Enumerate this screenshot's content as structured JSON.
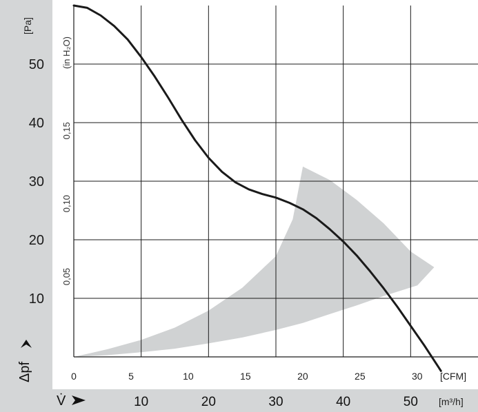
{
  "chart_data": {
    "type": "line",
    "title": "",
    "colors": {
      "curve": "#1a1a1a",
      "operating_range": "#d0d2d3",
      "left_band": "#d4d6d7",
      "bottom_band": "#d4d6d7",
      "grid": "#1a1a1a"
    },
    "axes": {
      "y_left": {
        "label": "[Pa]",
        "ticks": [
          "10",
          "20",
          "30",
          "40",
          "50"
        ],
        "range": [
          0,
          60
        ]
      },
      "y_inner": {
        "label": "(in H₂O)",
        "ticks": [
          "0,05",
          "0,10",
          "0,15"
        ]
      },
      "x_cfm": {
        "label": "[CFM]",
        "ticks": [
          "0",
          "5",
          "10",
          "15",
          "20",
          "25",
          "30"
        ],
        "range": [
          0,
          35.3
        ]
      },
      "x_m3h": {
        "label": "[m³/h]",
        "ticks": [
          "10",
          "20",
          "30",
          "40",
          "50"
        ],
        "range": [
          0,
          60
        ]
      },
      "pressure_symbol": "Δpf",
      "flow_symbol": "V̇"
    },
    "grid": true,
    "series": [
      {
        "x_m3h": [
          0,
          2,
          4,
          6,
          8,
          10,
          12,
          14,
          16,
          18,
          20,
          22,
          24,
          26,
          28,
          30,
          32,
          34,
          36,
          38,
          40,
          42,
          44,
          46,
          48,
          50,
          52,
          54,
          54.5
        ],
        "y_pa": [
          60,
          59.6,
          58.3,
          56.5,
          54.2,
          51.2,
          47.9,
          44.3,
          40.5,
          37.0,
          34.0,
          31.6,
          29.8,
          28.6,
          27.8,
          27.2,
          26.3,
          25.2,
          23.7,
          21.8,
          19.7,
          17.3,
          14.6,
          11.7,
          8.6,
          5.3,
          2.0,
          -1.5,
          -2.4
        ]
      }
    ],
    "operating_region": {
      "x_m3h": [
        0,
        5,
        10,
        15,
        20,
        25,
        30,
        32.5,
        34,
        38,
        42,
        46,
        50,
        53.5,
        51,
        46,
        42,
        38,
        34,
        30,
        25,
        20,
        15,
        10,
        5,
        0
      ],
      "y_pa": [
        0,
        1.3,
        2.9,
        5.0,
        7.9,
        11.8,
        17.2,
        23.5,
        32.5,
        30.2,
        26.8,
        22.8,
        18.0,
        15.3,
        12.2,
        10.4,
        8.8,
        7.3,
        5.8,
        4.6,
        3.3,
        2.3,
        1.4,
        0.8,
        0.3,
        0
      ]
    }
  }
}
